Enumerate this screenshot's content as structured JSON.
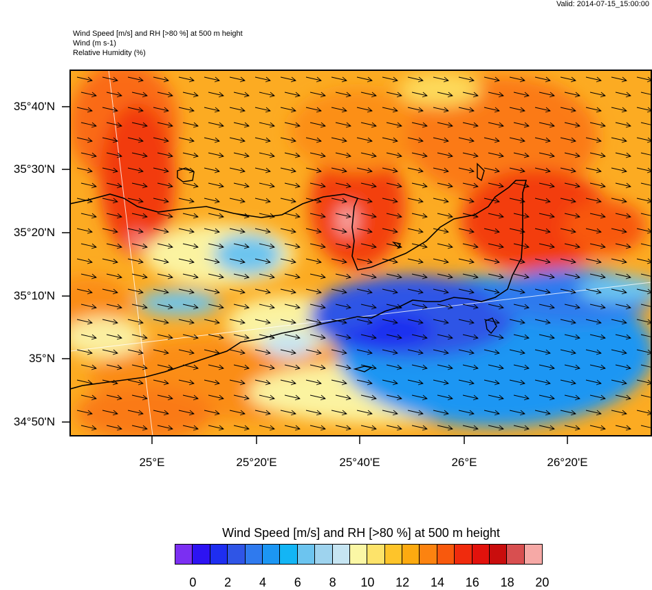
{
  "header": {
    "valid": "Valid: 2014-07-15_15:00:00",
    "title_lines": [
      "Wind Speed [m/s] and RH [>80 %] at 500 m height",
      "Wind   (m s-1)",
      "Relative Humidity   (%)"
    ]
  },
  "map": {
    "y_ticks": [
      "35°40'N",
      "35°30'N",
      "35°20'N",
      "35°10'N",
      "35°N",
      "34°50'N"
    ],
    "x_ticks": [
      "25°E",
      "25°20'E",
      "25°40'E",
      "26°E",
      "26°20'E"
    ],
    "wind_direction": "east-southeast",
    "coastline": "Crete",
    "regions": {
      "high_wind_cores": [
        "west (~25°E, 35°20'-35°40'N)",
        "central (~25°40'E, 35°25'N)",
        "east (~26°10'E, 35°20'N)"
      ],
      "low_wind_zone": "southeast lee of Crete"
    }
  },
  "colorbar": {
    "title": "Wind Speed [m/s] and RH [>80 %] at 500 m height",
    "labels": [
      "0",
      "2",
      "4",
      "6",
      "8",
      "10",
      "12",
      "14",
      "16",
      "18",
      "20"
    ],
    "colors": [
      "#7b2ff2",
      "#2d13f2",
      "#1e2ef0",
      "#2f55e6",
      "#2f7aee",
      "#1c96f3",
      "#13b5f5",
      "#6cc4ef",
      "#9ed3ee",
      "#c6e5f2",
      "#fbf7a5",
      "#fde36a",
      "#fec42a",
      "#fdaa10",
      "#fc8310",
      "#f8590d",
      "#f02b0d",
      "#e2120c",
      "#c90d0d",
      "#d84f50",
      "#f6a9a6"
    ]
  }
}
